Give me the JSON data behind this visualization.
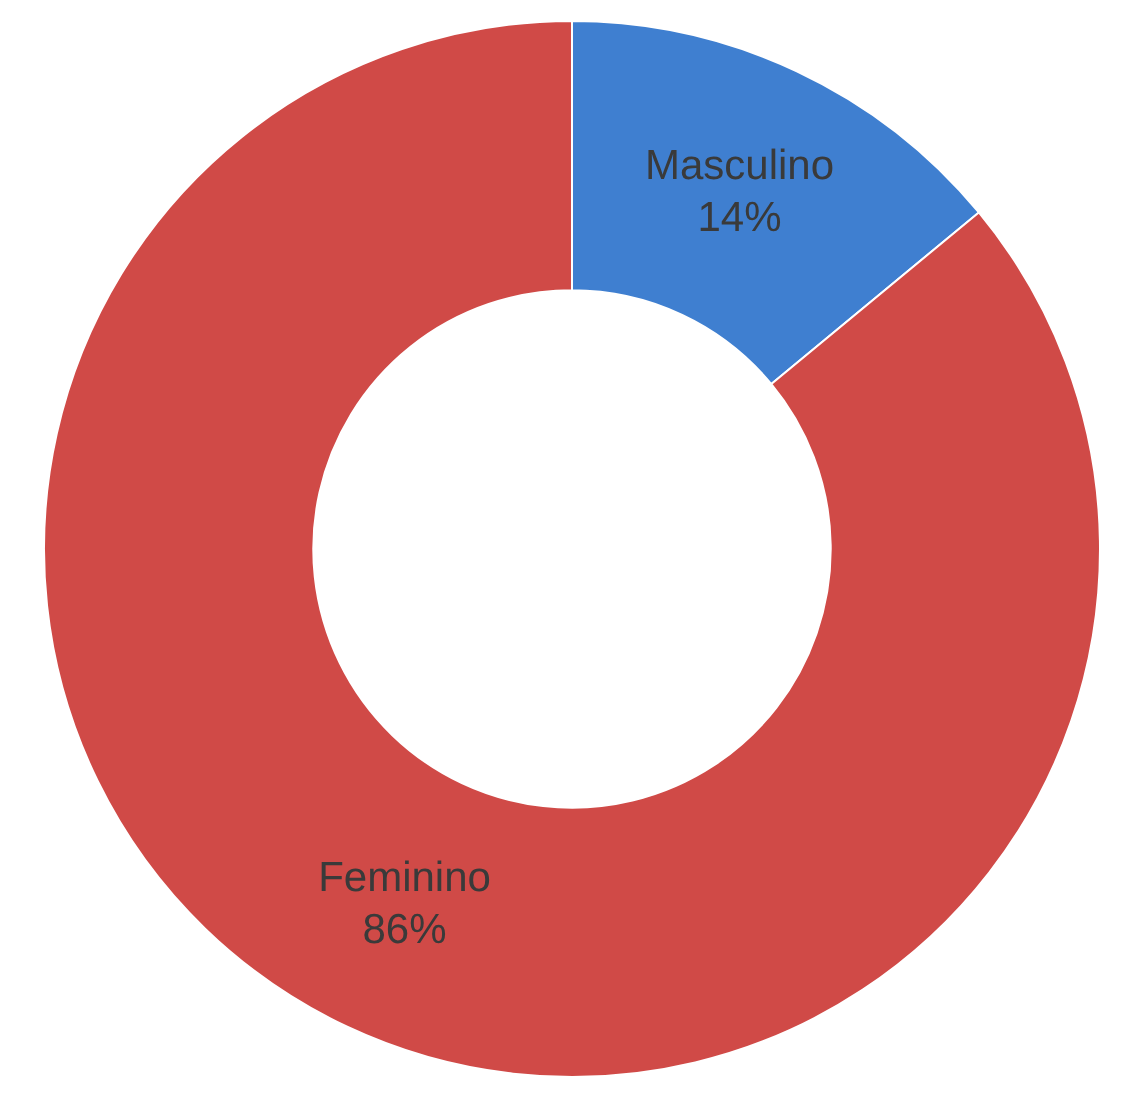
{
  "chart_data": {
    "type": "donut",
    "categories": [
      "Masculino",
      "Feminino"
    ],
    "values": [
      14,
      86
    ],
    "colors": [
      "#3f7fd0",
      "#d04a47"
    ],
    "value_labels": [
      "14%",
      "86%"
    ],
    "legend": false
  }
}
